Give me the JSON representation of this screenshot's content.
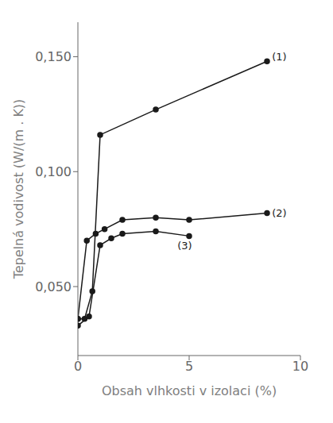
{
  "chart_data": {
    "type": "line",
    "xlabel": "Obsah vlhkosti v izolaci (%)",
    "ylabel": "Tepelná vodivost (W/(m . K))",
    "color": "#1a1a1a",
    "marker": "circle",
    "line_style": "solid",
    "grid": false,
    "xlim": [
      0,
      10
    ],
    "xticks": [
      0,
      5,
      10
    ],
    "ylim": [
      0.02,
      0.165
    ],
    "yticks": [
      {
        "value": 0.05,
        "label": "0,050"
      },
      {
        "value": 0.1,
        "label": "0,100"
      },
      {
        "value": 0.15,
        "label": "0,150"
      }
    ],
    "series": [
      {
        "x": [
          0.0,
          0.3,
          0.65,
          1.0,
          3.5,
          8.5
        ],
        "values": [
          0.036,
          0.036,
          0.048,
          0.116,
          0.127,
          0.148
        ]
      },
      {
        "x": [
          0.0,
          0.4,
          0.8,
          1.2,
          2.0,
          3.5,
          5.0,
          8.5
        ],
        "values": [
          0.036,
          0.07,
          0.073,
          0.075,
          0.079,
          0.08,
          0.079,
          0.082
        ]
      },
      {
        "x": [
          0.0,
          0.5,
          1.0,
          1.5,
          2.0,
          3.5,
          5.0
        ],
        "values": [
          0.033,
          0.037,
          0.068,
          0.071,
          0.073,
          0.074,
          0.072
        ]
      }
    ],
    "annotations": [
      {
        "text": "(1)",
        "x": 8.65,
        "y": 0.15
      },
      {
        "text": "(2)",
        "x": 8.65,
        "y": 0.082
      },
      {
        "text": "(3)",
        "x": 4.4,
        "y": 0.068
      }
    ]
  }
}
